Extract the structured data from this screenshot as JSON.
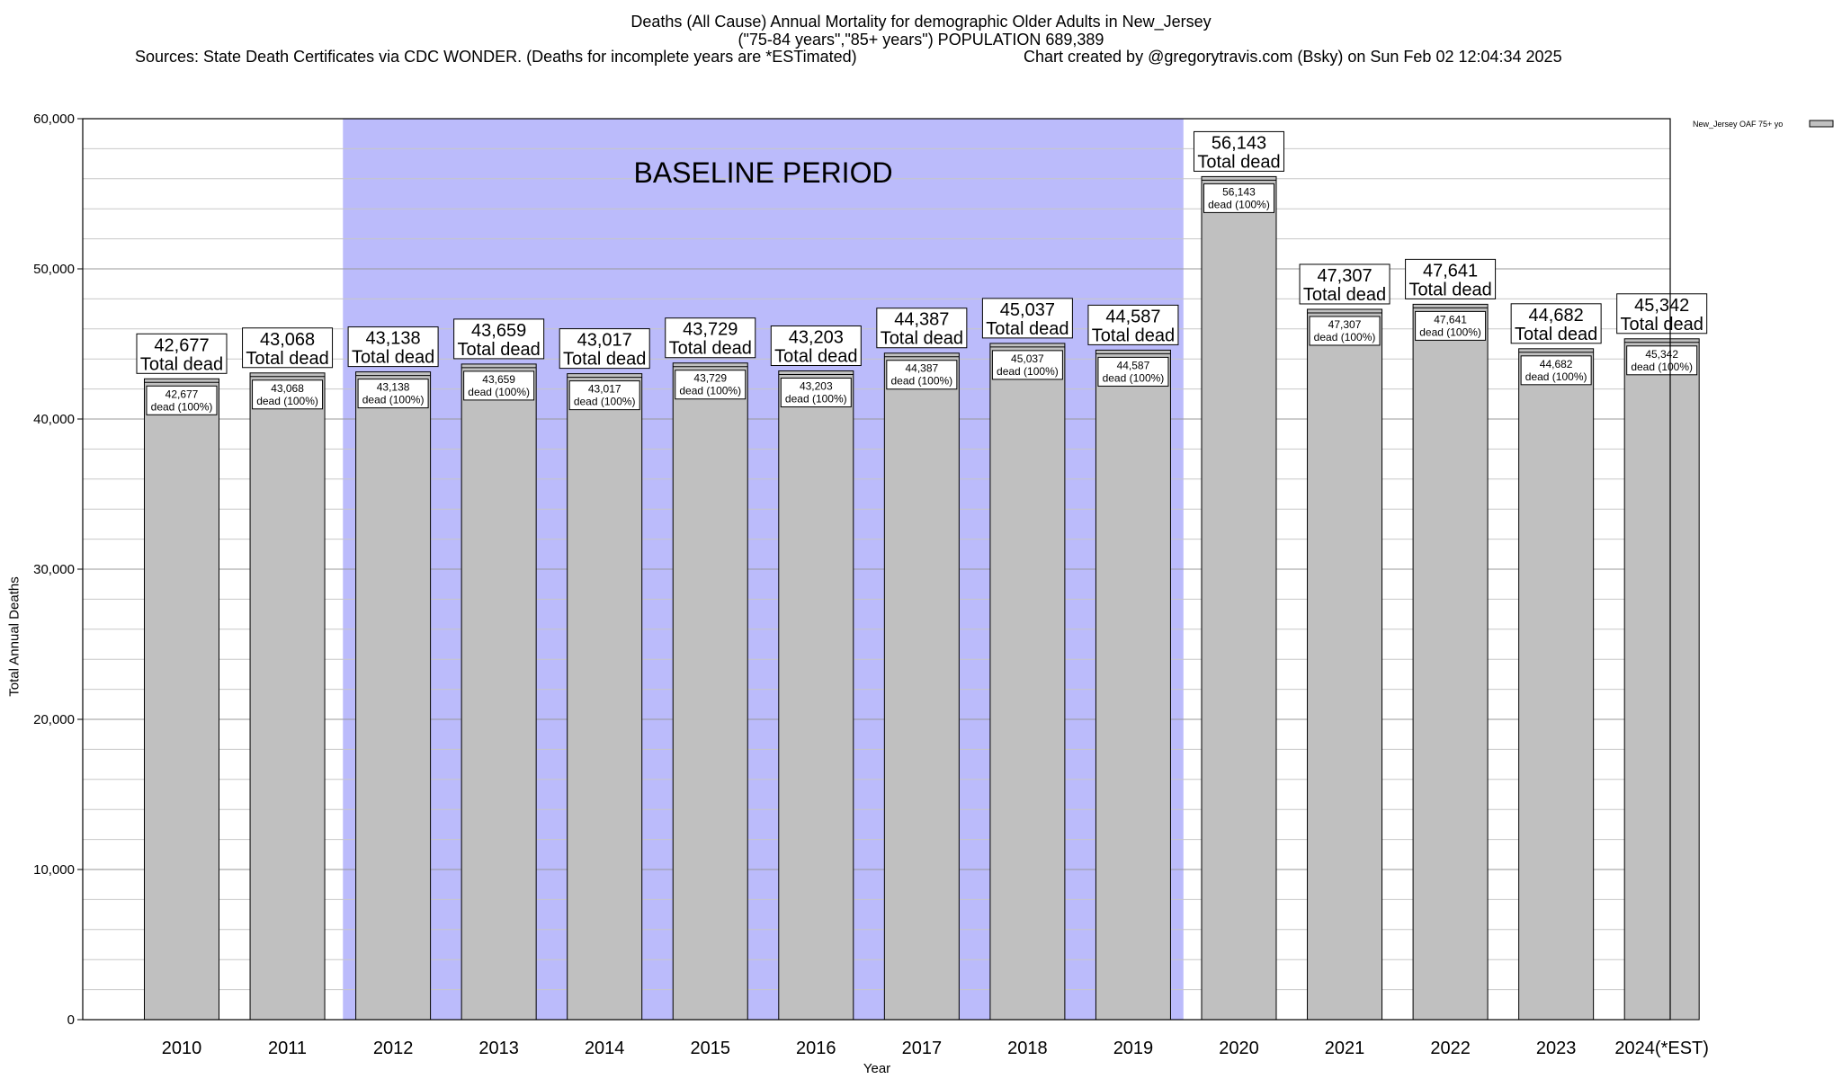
{
  "header": {
    "title": "Deaths (All Cause) Annual Mortality for demographic Older Adults in New_Jersey",
    "subtitle": "(\"75-84 years\",\"85+ years\") POPULATION 689,389",
    "sources": "Sources: State Death Certificates via CDC WONDER. (Deaths for incomplete years are *ESTimated)",
    "credit": "Chart created by @gregorytravis.com (Bsky) on Sun Feb 02 12:04:34 2025"
  },
  "chart_data": {
    "type": "bar",
    "xlabel": "Year",
    "ylabel": "Total Annual Deaths",
    "ylim": [
      0,
      60000
    ],
    "yticks": [
      0,
      10000,
      20000,
      30000,
      40000,
      50000,
      60000
    ],
    "ytick_labels": [
      "0",
      "10,000",
      "20,000",
      "30,000",
      "40,000",
      "50,000",
      "60,000"
    ],
    "grid": true,
    "legend_position": "top-right",
    "categories": [
      "2010",
      "2011",
      "2012",
      "2013",
      "2014",
      "2015",
      "2016",
      "2017",
      "2018",
      "2019",
      "2020",
      "2021",
      "2022",
      "2023",
      "2024(*EST)"
    ],
    "series": [
      {
        "name": "New_Jersey OAF 75+ yo",
        "values": [
          42677,
          43068,
          43138,
          43659,
          43017,
          43729,
          43203,
          44387,
          45037,
          44587,
          56143,
          47307,
          47641,
          44682,
          45342
        ],
        "color": "#c0c0c0"
      }
    ],
    "top_labels": [
      "42,677",
      "43,068",
      "43,138",
      "43,659",
      "43,017",
      "43,729",
      "43,203",
      "44,387",
      "45,037",
      "44,587",
      "56,143",
      "47,307",
      "47,641",
      "44,682",
      "45,342"
    ],
    "top_label_suffix": "Total dead",
    "inner_labels": [
      "42,677",
      "43,068",
      "43,138",
      "43,659",
      "43,017",
      "43,729",
      "43,203",
      "44,387",
      "45,037",
      "44,587",
      "56,143",
      "47,307",
      "47,641",
      "44,682",
      "45,342"
    ],
    "inner_label_suffix": "dead (100%)",
    "annotation": {
      "text": "BASELINE PERIOD",
      "from_category": "2012",
      "to_category": "2019",
      "color": "#bbbbfb"
    }
  }
}
